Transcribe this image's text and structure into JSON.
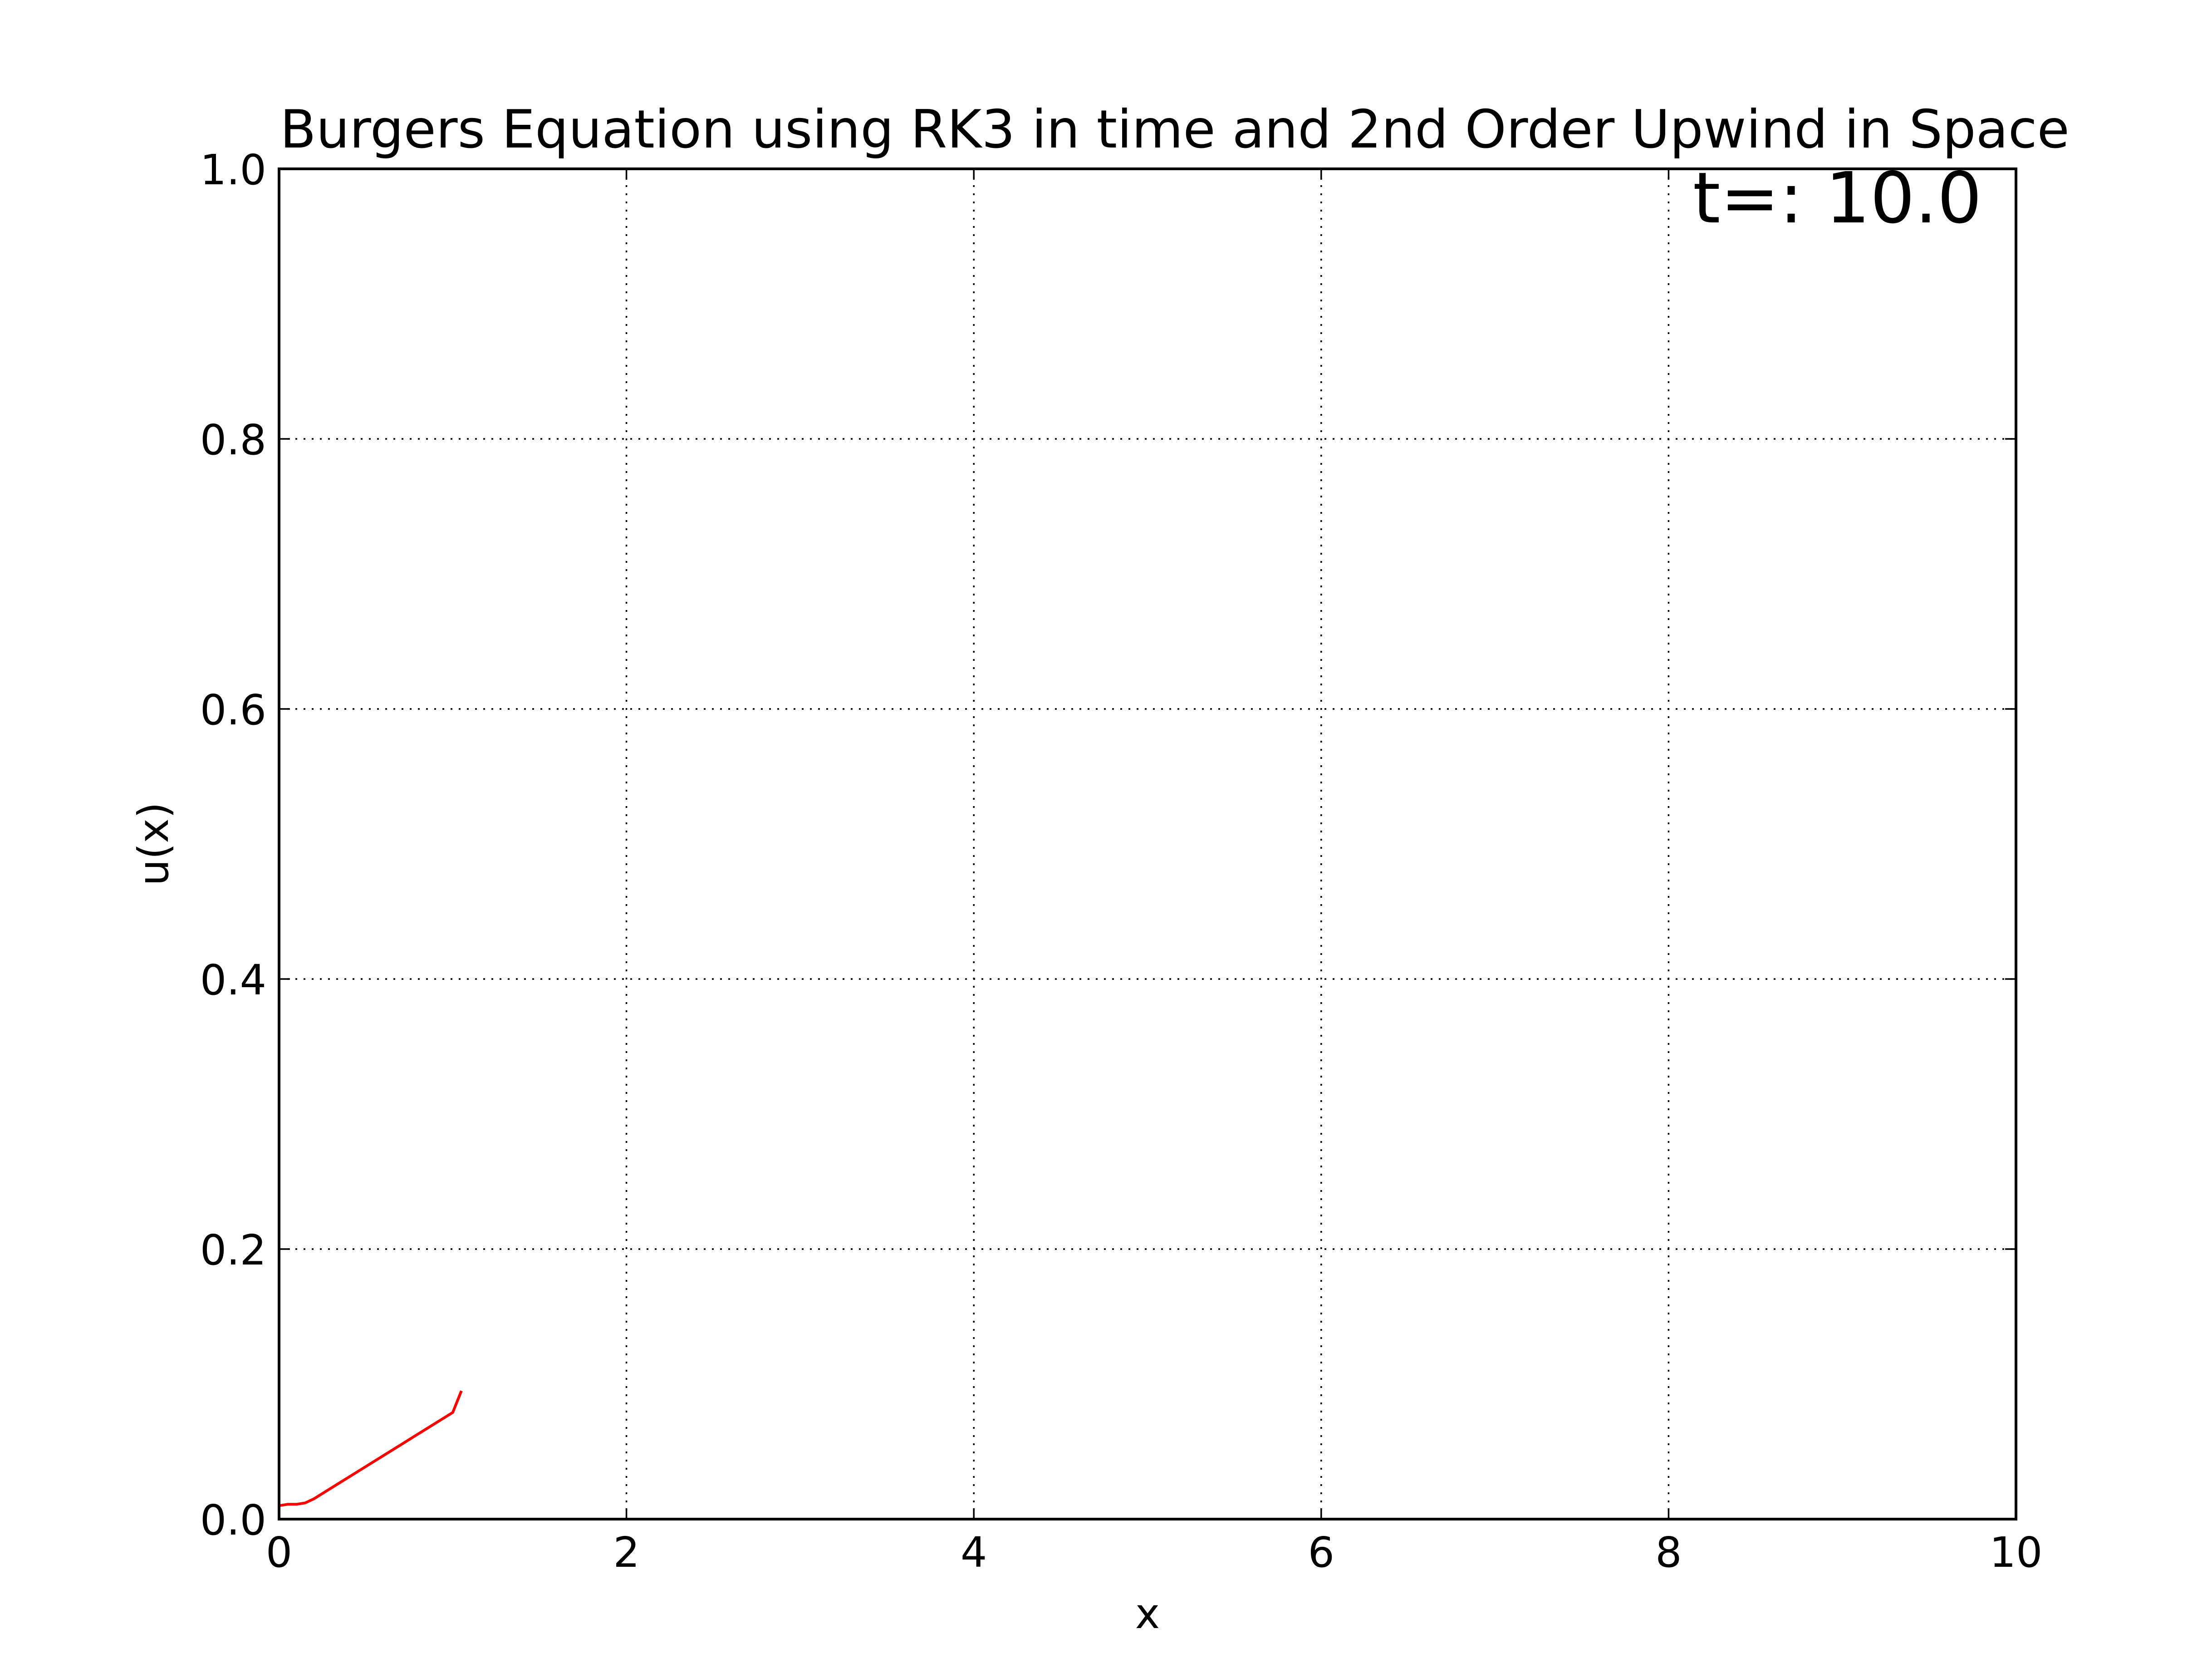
{
  "chart_data": {
    "type": "line",
    "title": "Burgers Equation using RK3 in time and 2nd Order Upwind in Space",
    "annotation": "t=: 10.0",
    "xlabel": "x",
    "ylabel": "u(x)",
    "xlim": [
      0,
      10
    ],
    "ylim": [
      0,
      1.0
    ],
    "xticks": [
      0,
      2,
      4,
      6,
      8,
      10
    ],
    "xtick_labels": [
      "0",
      "2",
      "4",
      "6",
      "8",
      "10"
    ],
    "yticks": [
      0.0,
      0.2,
      0.4,
      0.6,
      0.8,
      1.0
    ],
    "ytick_labels": [
      "0.0",
      "0.2",
      "0.4",
      "0.6",
      "0.8",
      "1.0"
    ],
    "grid": true,
    "series": [
      {
        "color": "#ff0000",
        "x": [
          0.0,
          0.05,
          0.1,
          0.15,
          0.2,
          0.3,
          0.4,
          0.5,
          0.6,
          0.7,
          0.8,
          0.9,
          1.0,
          1.05
        ],
        "y": [
          0.01,
          0.011,
          0.011,
          0.012,
          0.015,
          0.023,
          0.031,
          0.039,
          0.047,
          0.055,
          0.063,
          0.071,
          0.079,
          0.095
        ]
      }
    ]
  }
}
